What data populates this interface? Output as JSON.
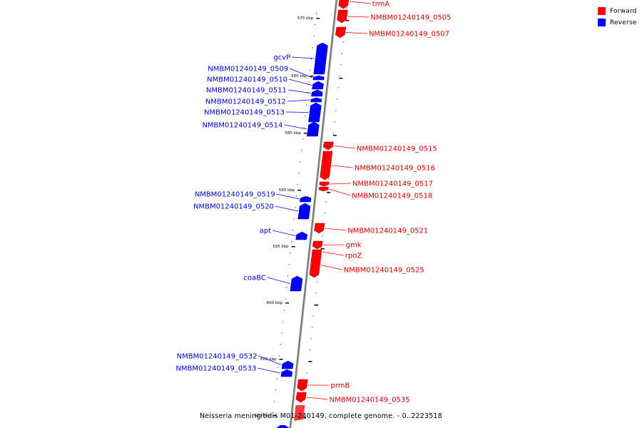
{
  "caption": "Neisseria meningitidis M01-240149, complete genome. - 0..2223518",
  "legend": [
    {
      "label": "Forward",
      "color": "#ff0000"
    },
    {
      "label": "Reverse",
      "color": "#0000ff"
    }
  ],
  "colors": {
    "forward": "#ff0000",
    "reverse": "#0000ff",
    "backbone": "#808080",
    "forward_label": "#cc0000",
    "reverse_label": "#0000cc"
  },
  "scale_ticks": [
    "575 kbp",
    "580 kbp",
    "585 kbp",
    "590 kbp",
    "595 kbp",
    "600 kbp",
    "605 kbp",
    "610 kbp"
  ],
  "genes": [
    {
      "label": "trmA",
      "strand": "forward"
    },
    {
      "label": "NMBM01240149_0505",
      "strand": "forward"
    },
    {
      "label": "NMBM01240149_0507",
      "strand": "forward"
    },
    {
      "label": "gcvP",
      "strand": "reverse"
    },
    {
      "label": "NMBM01240149_0509",
      "strand": "reverse"
    },
    {
      "label": "NMBM01240149_0510",
      "strand": "reverse"
    },
    {
      "label": "NMBM01240149_0511",
      "strand": "reverse"
    },
    {
      "label": "NMBM01240149_0512",
      "strand": "reverse"
    },
    {
      "label": "NMBM01240149_0513",
      "strand": "reverse"
    },
    {
      "label": "NMBM01240149_0514",
      "strand": "reverse"
    },
    {
      "label": "NMBM01240149_0515",
      "strand": "forward"
    },
    {
      "label": "NMBM01240149_0516",
      "strand": "forward"
    },
    {
      "label": "NMBM01240149_0517",
      "strand": "forward"
    },
    {
      "label": "NMBM01240149_0518",
      "strand": "forward"
    },
    {
      "label": "NMBM01240149_0519",
      "strand": "reverse"
    },
    {
      "label": "NMBM01240149_0520",
      "strand": "reverse"
    },
    {
      "label": "apt",
      "strand": "reverse"
    },
    {
      "label": "NMBM01240149_0521",
      "strand": "forward"
    },
    {
      "label": "gmk",
      "strand": "forward"
    },
    {
      "label": "rpoZ",
      "strand": "forward"
    },
    {
      "label": "NMBM01240149_0525",
      "strand": "forward"
    },
    {
      "label": "coaBC",
      "strand": "reverse"
    },
    {
      "label": "NMBM01240149_0532",
      "strand": "reverse"
    },
    {
      "label": "NMBM01240149_0533",
      "strand": "reverse"
    },
    {
      "label": "prmB",
      "strand": "forward"
    },
    {
      "label": "NMBM01240149_0535",
      "strand": "forward"
    }
  ]
}
